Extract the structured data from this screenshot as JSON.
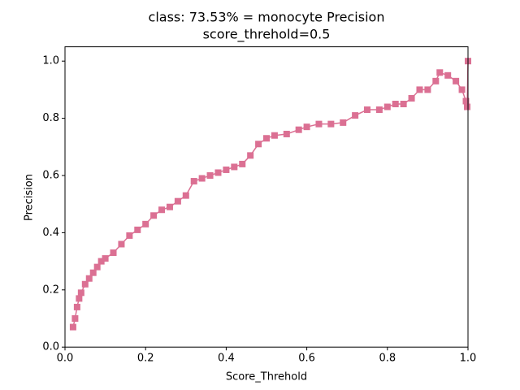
{
  "chart_data": {
    "type": "line",
    "title": "class: 73.53% = monocyte Precision",
    "subtitle": "score_threhold=0.5",
    "x_label": "Score_Threhold",
    "y_label": "Precision",
    "marker": "square",
    "series": [
      {
        "color": "#db7093",
        "x": [
          0.02,
          0.025,
          0.03,
          0.035,
          0.04,
          0.05,
          0.06,
          0.07,
          0.08,
          0.09,
          0.1,
          0.12,
          0.14,
          0.16,
          0.18,
          0.2,
          0.22,
          0.24,
          0.26,
          0.28,
          0.3,
          0.32,
          0.34,
          0.36,
          0.38,
          0.4,
          0.42,
          0.44,
          0.46,
          0.48,
          0.5,
          0.52,
          0.55,
          0.58,
          0.6,
          0.63,
          0.66,
          0.69,
          0.72,
          0.75,
          0.78,
          0.8,
          0.82,
          0.84,
          0.86,
          0.88,
          0.9,
          0.92,
          0.93,
          0.95,
          0.97,
          0.985,
          0.995,
          0.998,
          1.0
        ],
        "values": [
          0.07,
          0.1,
          0.14,
          0.17,
          0.19,
          0.22,
          0.24,
          0.26,
          0.28,
          0.3,
          0.31,
          0.33,
          0.36,
          0.39,
          0.41,
          0.43,
          0.46,
          0.48,
          0.49,
          0.51,
          0.53,
          0.58,
          0.59,
          0.6,
          0.61,
          0.62,
          0.63,
          0.64,
          0.67,
          0.71,
          0.73,
          0.74,
          0.745,
          0.76,
          0.77,
          0.78,
          0.78,
          0.785,
          0.81,
          0.83,
          0.83,
          0.84,
          0.85,
          0.85,
          0.87,
          0.9,
          0.9,
          0.93,
          0.96,
          0.95,
          0.93,
          0.9,
          0.86,
          0.84,
          1.0
        ]
      }
    ],
    "xlim": [
      0,
      1
    ],
    "ylim": [
      0,
      1.05
    ],
    "xticks": [
      {
        "value": 0,
        "label": "0.0"
      },
      0.2,
      0.4,
      0.6,
      0.8,
      {
        "value": 1,
        "label": "1.0"
      }
    ],
    "yticks": [
      {
        "value": 0,
        "label": "0.0"
      },
      0.2,
      0.4,
      0.6,
      0.8,
      {
        "value": 1,
        "label": "1.0"
      }
    ],
    "grid": false
  }
}
